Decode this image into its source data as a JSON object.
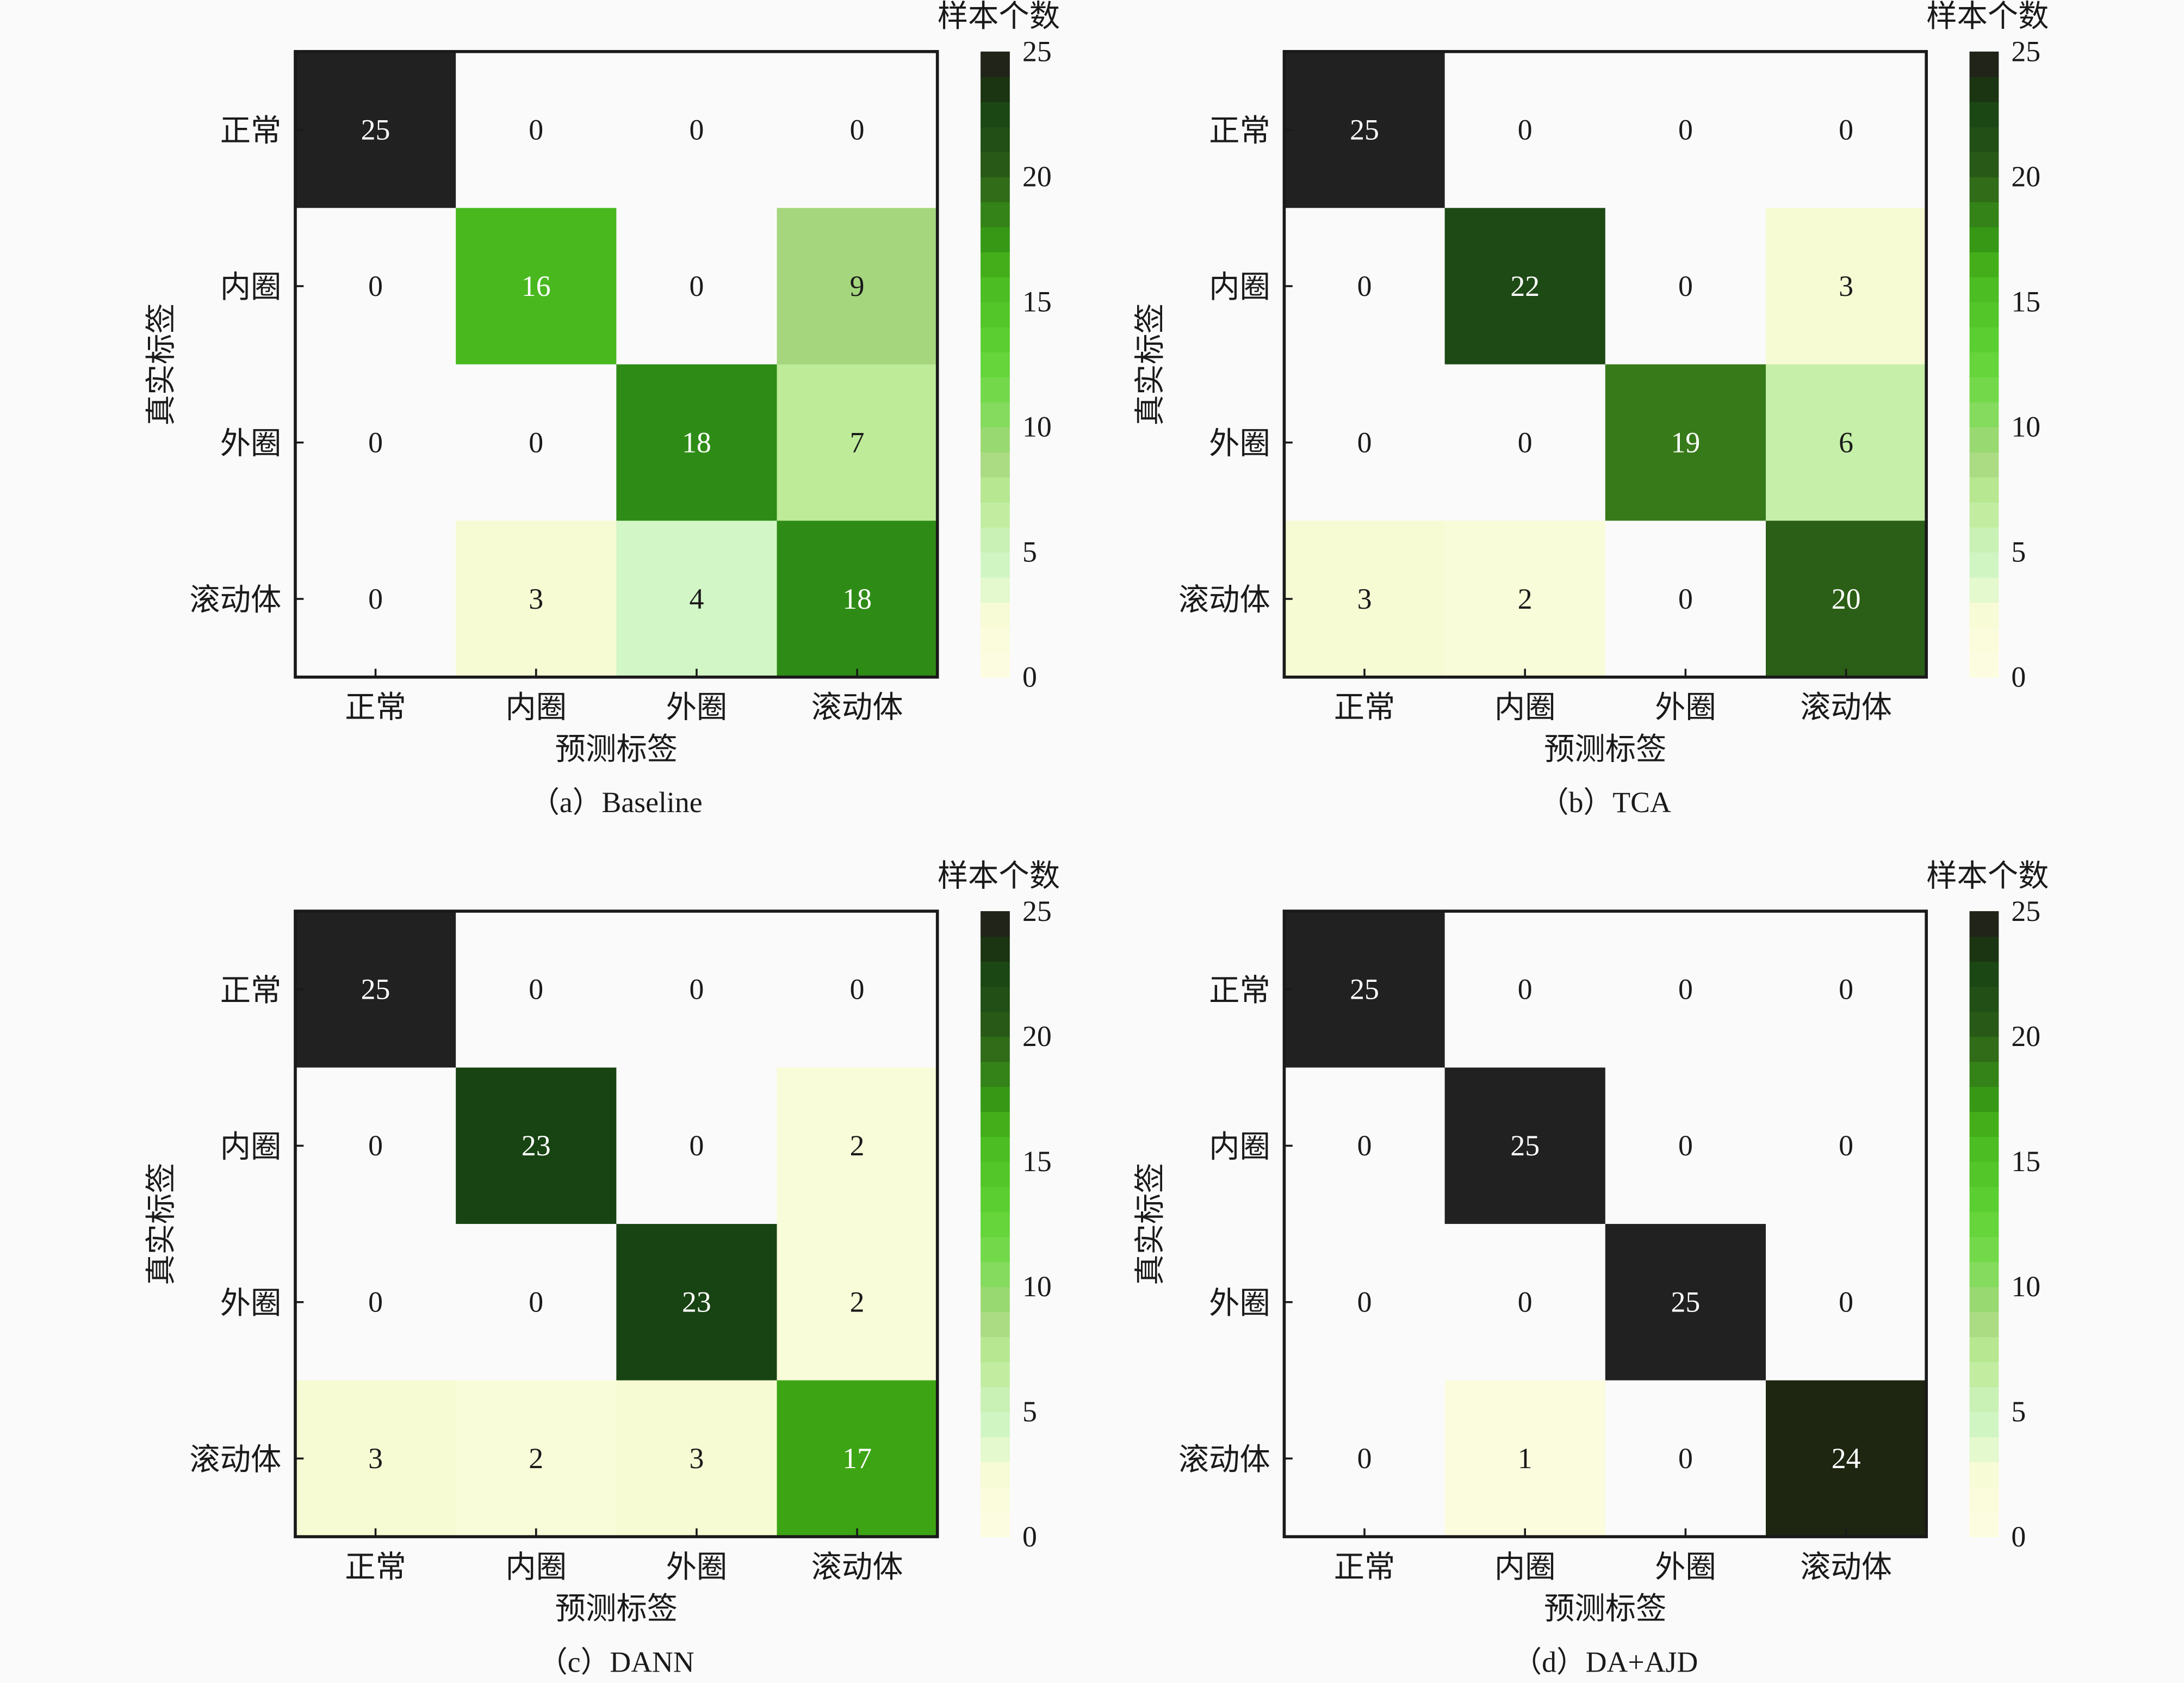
{
  "colormap": {
    "empty_cell_color": "#fafafa",
    "stops": [
      {
        "value": 0,
        "color": "#fdfde3"
      },
      {
        "value": 3,
        "color": "#f6fbd3"
      },
      {
        "value": 4,
        "color": "#d2f6c6"
      },
      {
        "value": 5,
        "color": "#cdf3c0"
      },
      {
        "value": 6,
        "color": "#c6efa9"
      },
      {
        "value": 7,
        "color": "#bdeb98"
      },
      {
        "value": 8,
        "color": "#b0e288"
      },
      {
        "value": 9,
        "color": "#a5d67e"
      },
      {
        "value": 10,
        "color": "#8cdc66"
      },
      {
        "value": 12,
        "color": "#6ad840"
      },
      {
        "value": 14,
        "color": "#56ca2c"
      },
      {
        "value": 16,
        "color": "#48b81e"
      },
      {
        "value": 17,
        "color": "#3da414"
      },
      {
        "value": 18,
        "color": "#2e8c16"
      },
      {
        "value": 19,
        "color": "#377a1a"
      },
      {
        "value": 20,
        "color": "#2b5e16"
      },
      {
        "value": 22,
        "color": "#1e4a15"
      },
      {
        "value": 23,
        "color": "#184312"
      },
      {
        "value": 24,
        "color": "#1e2611"
      },
      {
        "value": 25,
        "color": "#212121"
      }
    ]
  },
  "chart_data": [
    {
      "type": "heatmap",
      "caption": "（a）Baseline",
      "xlabel": "预测标签",
      "ylabel": "真实标签",
      "x_categories": [
        "正常",
        "内圈",
        "外圈",
        "滚动体"
      ],
      "y_categories": [
        "正常",
        "内圈",
        "外圈",
        "滚动体"
      ],
      "values": [
        [
          25,
          0,
          0,
          0
        ],
        [
          0,
          16,
          0,
          9
        ],
        [
          0,
          0,
          18,
          7
        ],
        [
          0,
          3,
          4,
          18
        ]
      ],
      "colorbar": {
        "label": "样本个数",
        "range": [
          0,
          25
        ],
        "ticks": [
          0,
          5,
          10,
          15,
          20,
          25
        ]
      }
    },
    {
      "type": "heatmap",
      "caption": "（b）TCA",
      "xlabel": "预测标签",
      "ylabel": "真实标签",
      "x_categories": [
        "正常",
        "内圈",
        "外圈",
        "滚动体"
      ],
      "y_categories": [
        "正常",
        "内圈",
        "外圈",
        "滚动体"
      ],
      "values": [
        [
          25,
          0,
          0,
          0
        ],
        [
          0,
          22,
          0,
          3
        ],
        [
          0,
          0,
          19,
          6
        ],
        [
          3,
          2,
          0,
          20
        ]
      ],
      "colorbar": {
        "label": "样本个数",
        "range": [
          0,
          25
        ],
        "ticks": [
          0,
          5,
          10,
          15,
          20,
          25
        ]
      }
    },
    {
      "type": "heatmap",
      "caption": "（c）DANN",
      "xlabel": "预测标签",
      "ylabel": "真实标签",
      "x_categories": [
        "正常",
        "内圈",
        "外圈",
        "滚动体"
      ],
      "y_categories": [
        "正常",
        "内圈",
        "外圈",
        "滚动体"
      ],
      "values": [
        [
          25,
          0,
          0,
          0
        ],
        [
          0,
          23,
          0,
          2
        ],
        [
          0,
          0,
          23,
          2
        ],
        [
          3,
          2,
          3,
          17
        ]
      ],
      "colorbar": {
        "label": "样本个数",
        "range": [
          0,
          25
        ],
        "ticks": [
          0,
          5,
          10,
          15,
          20,
          25
        ]
      }
    },
    {
      "type": "heatmap",
      "caption": "（d）DA+AJD",
      "xlabel": "预测标签",
      "ylabel": "真实标签",
      "x_categories": [
        "正常",
        "内圈",
        "外圈",
        "滚动体"
      ],
      "y_categories": [
        "正常",
        "内圈",
        "外圈",
        "滚动体"
      ],
      "values": [
        [
          25,
          0,
          0,
          0
        ],
        [
          0,
          25,
          0,
          0
        ],
        [
          0,
          0,
          25,
          0
        ],
        [
          0,
          1,
          0,
          24
        ]
      ],
      "colorbar": {
        "label": "样本个数",
        "range": [
          0,
          25
        ],
        "ticks": [
          0,
          5,
          10,
          15,
          20,
          25
        ]
      }
    }
  ]
}
